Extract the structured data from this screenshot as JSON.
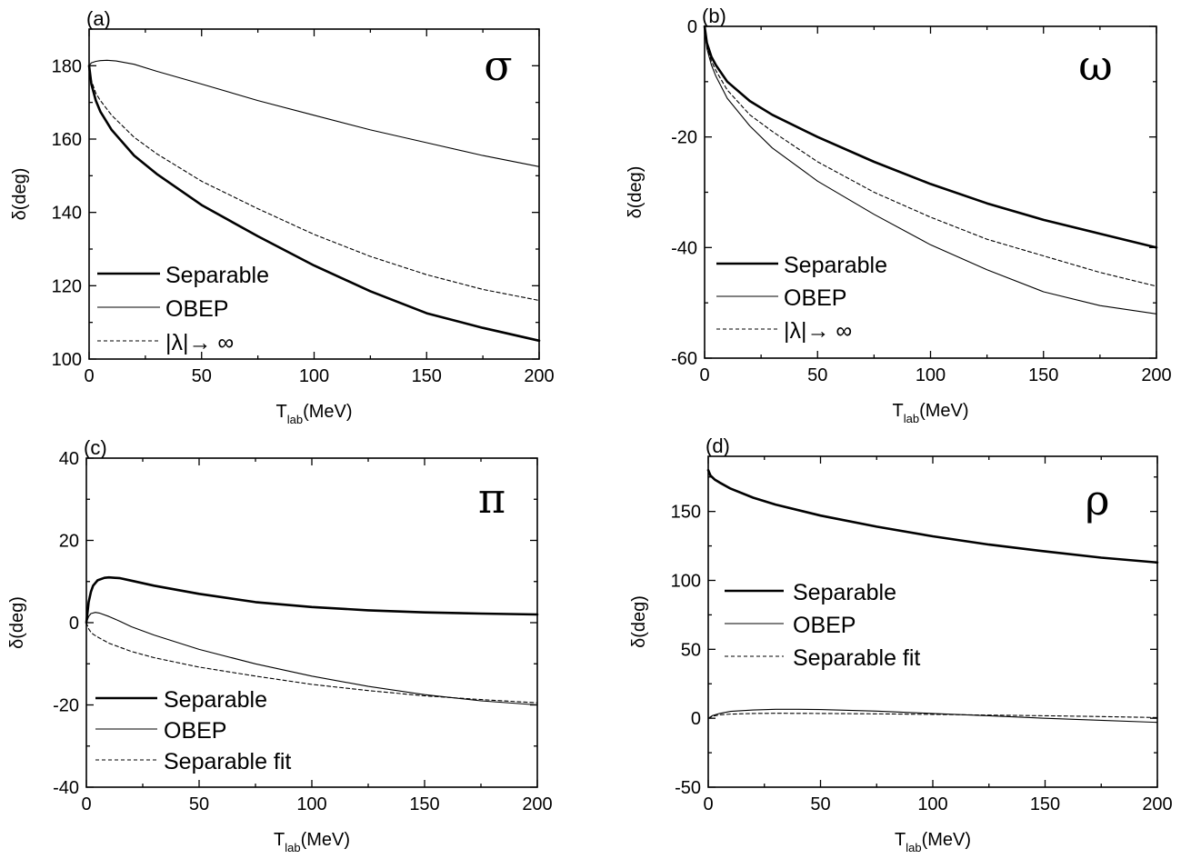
{
  "chart_data": [
    {
      "type": "line",
      "panel_label": "(a)",
      "symbol": "σ",
      "xlabel_main": "T",
      "xlabel_sub": "lab",
      "xlabel_unit": "(MeV)",
      "ylabel": "δ(deg)",
      "xlim": [
        0,
        200
      ],
      "ylim": [
        100,
        190
      ],
      "xticks": [
        0,
        50,
        100,
        150,
        200
      ],
      "yticks": [
        100,
        120,
        140,
        160,
        180
      ],
      "legend_position": "bottom-left",
      "series": [
        {
          "name": "Separable",
          "style": "thick",
          "x": [
            0,
            1,
            3,
            5,
            10,
            20,
            30,
            50,
            75,
            100,
            125,
            150,
            175,
            200
          ],
          "y": [
            180,
            175,
            170.5,
            167.5,
            162.5,
            155.5,
            150.5,
            142,
            133.5,
            125.5,
            118.5,
            112.5,
            108.5,
            105
          ]
        },
        {
          "name": "OBEP",
          "style": "thin",
          "x": [
            0,
            1,
            3,
            5,
            8,
            12,
            20,
            30,
            50,
            75,
            100,
            125,
            150,
            175,
            200
          ],
          "y": [
            180,
            180.8,
            181.2,
            181.4,
            181.5,
            181.3,
            180.4,
            178.5,
            175,
            170.5,
            166.5,
            162.5,
            159,
            155.5,
            152.5
          ]
        },
        {
          "name": "|λ|→ ∞",
          "style": "dashed",
          "x": [
            0,
            1,
            3,
            5,
            10,
            20,
            30,
            50,
            75,
            100,
            125,
            150,
            175,
            200
          ],
          "y": [
            180,
            176,
            172.5,
            170.5,
            166.5,
            160.5,
            156,
            148.5,
            141,
            134,
            128,
            123,
            119,
            116
          ]
        }
      ]
    },
    {
      "type": "line",
      "panel_label": "(b)",
      "symbol": "ω",
      "xlabel_main": "T",
      "xlabel_sub": "lab",
      "xlabel_unit": "(MeV)",
      "ylabel": "δ(deg)",
      "xlim": [
        0,
        200
      ],
      "ylim": [
        -60,
        0
      ],
      "xticks": [
        0,
        50,
        100,
        150,
        200
      ],
      "yticks": [
        -60,
        -40,
        -20,
        0
      ],
      "legend_position": "bottom-left",
      "series": [
        {
          "name": "Separable",
          "style": "thick",
          "x": [
            0,
            1,
            3,
            5,
            10,
            20,
            30,
            50,
            75,
            100,
            125,
            150,
            175,
            200
          ],
          "y": [
            0,
            -3,
            -5.5,
            -7,
            -10,
            -13.5,
            -16,
            -20,
            -24.5,
            -28.5,
            -32,
            -35,
            -37.5,
            -40
          ]
        },
        {
          "name": "OBEP",
          "style": "thin",
          "x": [
            0,
            1,
            3,
            5,
            10,
            20,
            30,
            50,
            75,
            100,
            125,
            150,
            175,
            200
          ],
          "y": [
            0,
            -4,
            -7,
            -9,
            -13,
            -18,
            -22,
            -28,
            -34,
            -39.5,
            -44,
            -48,
            -50.5,
            -52
          ]
        },
        {
          "name": "|λ|→ ∞",
          "style": "dashed",
          "x": [
            0,
            1,
            3,
            5,
            10,
            20,
            30,
            50,
            75,
            100,
            125,
            150,
            175,
            200
          ],
          "y": [
            0,
            -3.5,
            -6.3,
            -8,
            -11.5,
            -16,
            -19,
            -24.5,
            -30,
            -34.5,
            -38.5,
            -41.5,
            -44.5,
            -47
          ]
        }
      ]
    },
    {
      "type": "line",
      "panel_label": "(c)",
      "symbol": "π",
      "xlabel_main": "T",
      "xlabel_sub": "lab",
      "xlabel_unit": "(MeV)",
      "ylabel": "δ(deg)",
      "xlim": [
        0,
        200
      ],
      "ylim": [
        -40,
        40
      ],
      "xticks": [
        0,
        50,
        100,
        150,
        200
      ],
      "yticks": [
        -40,
        -20,
        0,
        20,
        40
      ],
      "legend_position": "bottom-left",
      "series": [
        {
          "name": "Separable",
          "style": "thick",
          "x": [
            0,
            1,
            2,
            3,
            5,
            8,
            10,
            15,
            20,
            30,
            50,
            75,
            100,
            125,
            150,
            175,
            200
          ],
          "y": [
            0,
            5,
            7.5,
            9,
            10.3,
            10.9,
            11,
            10.8,
            10.2,
            9,
            7,
            5,
            3.8,
            3,
            2.5,
            2.2,
            2
          ]
        },
        {
          "name": "OBEP",
          "style": "thin",
          "x": [
            0,
            1,
            2,
            4,
            6,
            10,
            15,
            20,
            30,
            50,
            75,
            100,
            125,
            150,
            175,
            200
          ],
          "y": [
            0,
            1.5,
            2.2,
            2.5,
            2.3,
            1.5,
            0.3,
            -1,
            -3,
            -6.5,
            -10,
            -13,
            -15.5,
            -17.5,
            -19,
            -20
          ]
        },
        {
          "name": "Separable fit",
          "style": "dashed",
          "x": [
            0,
            1,
            2,
            3,
            5,
            10,
            20,
            30,
            50,
            75,
            100,
            125,
            150,
            175,
            200
          ],
          "y": [
            0,
            -1.5,
            -2.3,
            -2.8,
            -3.5,
            -5,
            -7,
            -8.5,
            -10.8,
            -13,
            -15,
            -16.5,
            -17.8,
            -18.7,
            -19.5
          ]
        }
      ]
    },
    {
      "type": "line",
      "panel_label": "(d)",
      "symbol": "ρ",
      "xlabel_main": "T",
      "xlabel_sub": "lab",
      "xlabel_unit": "(MeV)",
      "ylabel": "δ(deg)",
      "xlim": [
        0,
        200
      ],
      "ylim": [
        -50,
        190
      ],
      "xticks": [
        0,
        50,
        100,
        150,
        200
      ],
      "yticks": [
        -50,
        0,
        50,
        100,
        150
      ],
      "legend_position": "middle-left",
      "series": [
        {
          "name": "Separable",
          "style": "thick",
          "x": [
            0,
            1,
            3,
            5,
            10,
            20,
            30,
            50,
            75,
            100,
            125,
            150,
            175,
            200
          ],
          "y": [
            180,
            176,
            173,
            171,
            166.5,
            160,
            155,
            147,
            139,
            132,
            126,
            121,
            116.5,
            113
          ]
        },
        {
          "name": "OBEP",
          "style": "thin",
          "x": [
            0,
            2,
            5,
            10,
            20,
            30,
            40,
            50,
            75,
            100,
            125,
            150,
            175,
            200
          ],
          "y": [
            0,
            2,
            3.5,
            5,
            6,
            6.5,
            6.5,
            6.3,
            5.2,
            3.5,
            1.8,
            0,
            -1.5,
            -3
          ]
        },
        {
          "name": "Separable fit",
          "style": "dashed",
          "x": [
            0,
            2,
            5,
            10,
            20,
            30,
            50,
            75,
            100,
            125,
            150,
            175,
            200
          ],
          "y": [
            0,
            1.5,
            2.5,
            3,
            3.5,
            3.6,
            3.5,
            3.2,
            2.8,
            2.3,
            1.8,
            1.2,
            0.5
          ]
        }
      ]
    }
  ]
}
